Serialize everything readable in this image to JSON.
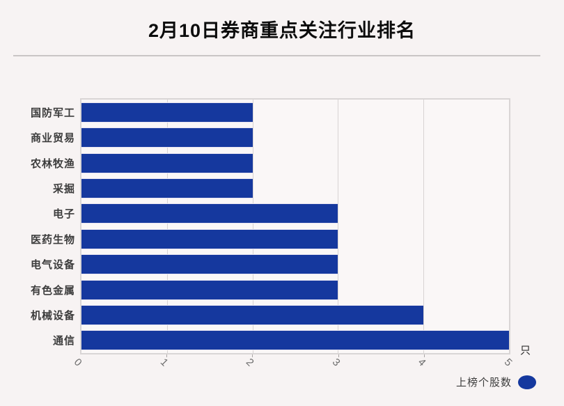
{
  "chart_data": {
    "type": "bar",
    "orientation": "horizontal",
    "title": "2月10日券商重点关注行业排名",
    "categories": [
      "国防军工",
      "商业贸易",
      "农林牧渔",
      "采掘",
      "电子",
      "医药生物",
      "电气设备",
      "有色金属",
      "机械设备",
      "通信"
    ],
    "values": [
      2,
      2,
      2,
      2,
      3,
      3,
      3,
      3,
      4,
      5
    ],
    "series_name": "上榜个股数",
    "unit_label": "只",
    "xlim": [
      0,
      5
    ],
    "xticks": [
      "0",
      "1",
      "2",
      "3",
      "4",
      "5"
    ],
    "grid": true,
    "gridlines_at": [
      1,
      2,
      3,
      4
    ],
    "legend_position": "bottom-right",
    "bar_color": "#15389e"
  },
  "colors": {
    "background": "#f7f3f3",
    "plot_background": "#faf7f7",
    "bar": "#15389e",
    "gridline": "#d7d3d3",
    "title_text": "#0c0c0c",
    "label_text": "#3c3c3c",
    "tick_text": "#6e6e6e"
  }
}
